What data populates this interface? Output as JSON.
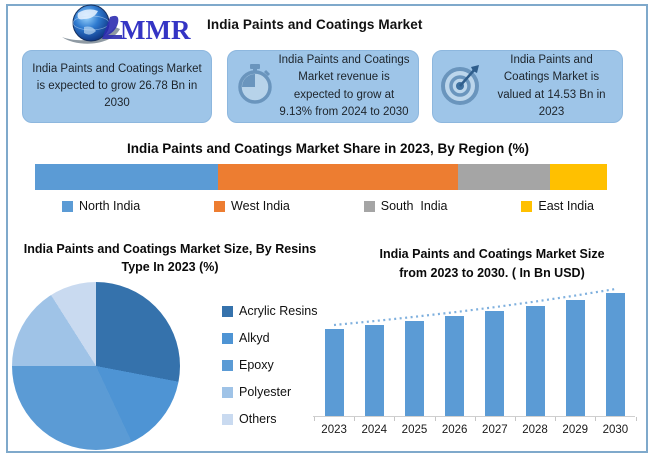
{
  "header": {
    "logo_text": "MMR",
    "app_title": "India Paints and Coatings Market"
  },
  "info_boxes": [
    {
      "icon": "none",
      "text": "India Paints and Coatings Market is expected to grow 26.78 Bn in 2030"
    },
    {
      "icon": "stopwatch",
      "text": "India Paints and Coatings Market revenue is expected to grow at 9.13% from 2024 to 2030"
    },
    {
      "icon": "target",
      "text": "India Paints and Coatings Market is valued at 14.53 Bn in 2023"
    }
  ],
  "chart_data": [
    {
      "type": "bar",
      "variant": "stacked-horizontal",
      "title": "India Paints and Coatings Market Share in 2023, By Region (%)",
      "categories": [
        "North India",
        "West India",
        "South  India",
        "East India"
      ],
      "values": [
        32,
        42,
        16,
        10
      ],
      "colors": [
        "#5B9BD5",
        "#ED7D31",
        "#A5A5A5",
        "#FFC000"
      ],
      "legend_position": "bottom",
      "xlim": [
        0,
        100
      ]
    },
    {
      "type": "pie",
      "title": "India Paints and Coatings Market Size, By Resins Type In 2023 (%)",
      "categories": [
        "Acrylic Resins",
        "Alkyd",
        "Epoxy",
        "Polyester",
        "Others"
      ],
      "values": [
        28,
        15,
        32,
        16,
        9
      ],
      "colors": [
        "#3572AC",
        "#4E94D4",
        "#5B9BD5",
        "#9FC3E7",
        "#C9DAF0"
      ],
      "legend_position": "right",
      "start_angle_deg": 0
    },
    {
      "type": "bar",
      "title": "India Paints and Coatings Market Size\nfrom 2023 to 2030. ( In Bn  USD)",
      "categories": [
        "2023",
        "2024",
        "2025",
        "2026",
        "2027",
        "2028",
        "2029",
        "2030"
      ],
      "values": [
        14.53,
        15.86,
        17.31,
        18.89,
        20.61,
        22.49,
        24.54,
        26.78
      ],
      "bar_color": "#5B9BD5",
      "trendline": true,
      "trendline_style": "dotted",
      "ylabel": "Bn USD",
      "ylim": [
        0,
        30
      ],
      "grid": false
    }
  ]
}
